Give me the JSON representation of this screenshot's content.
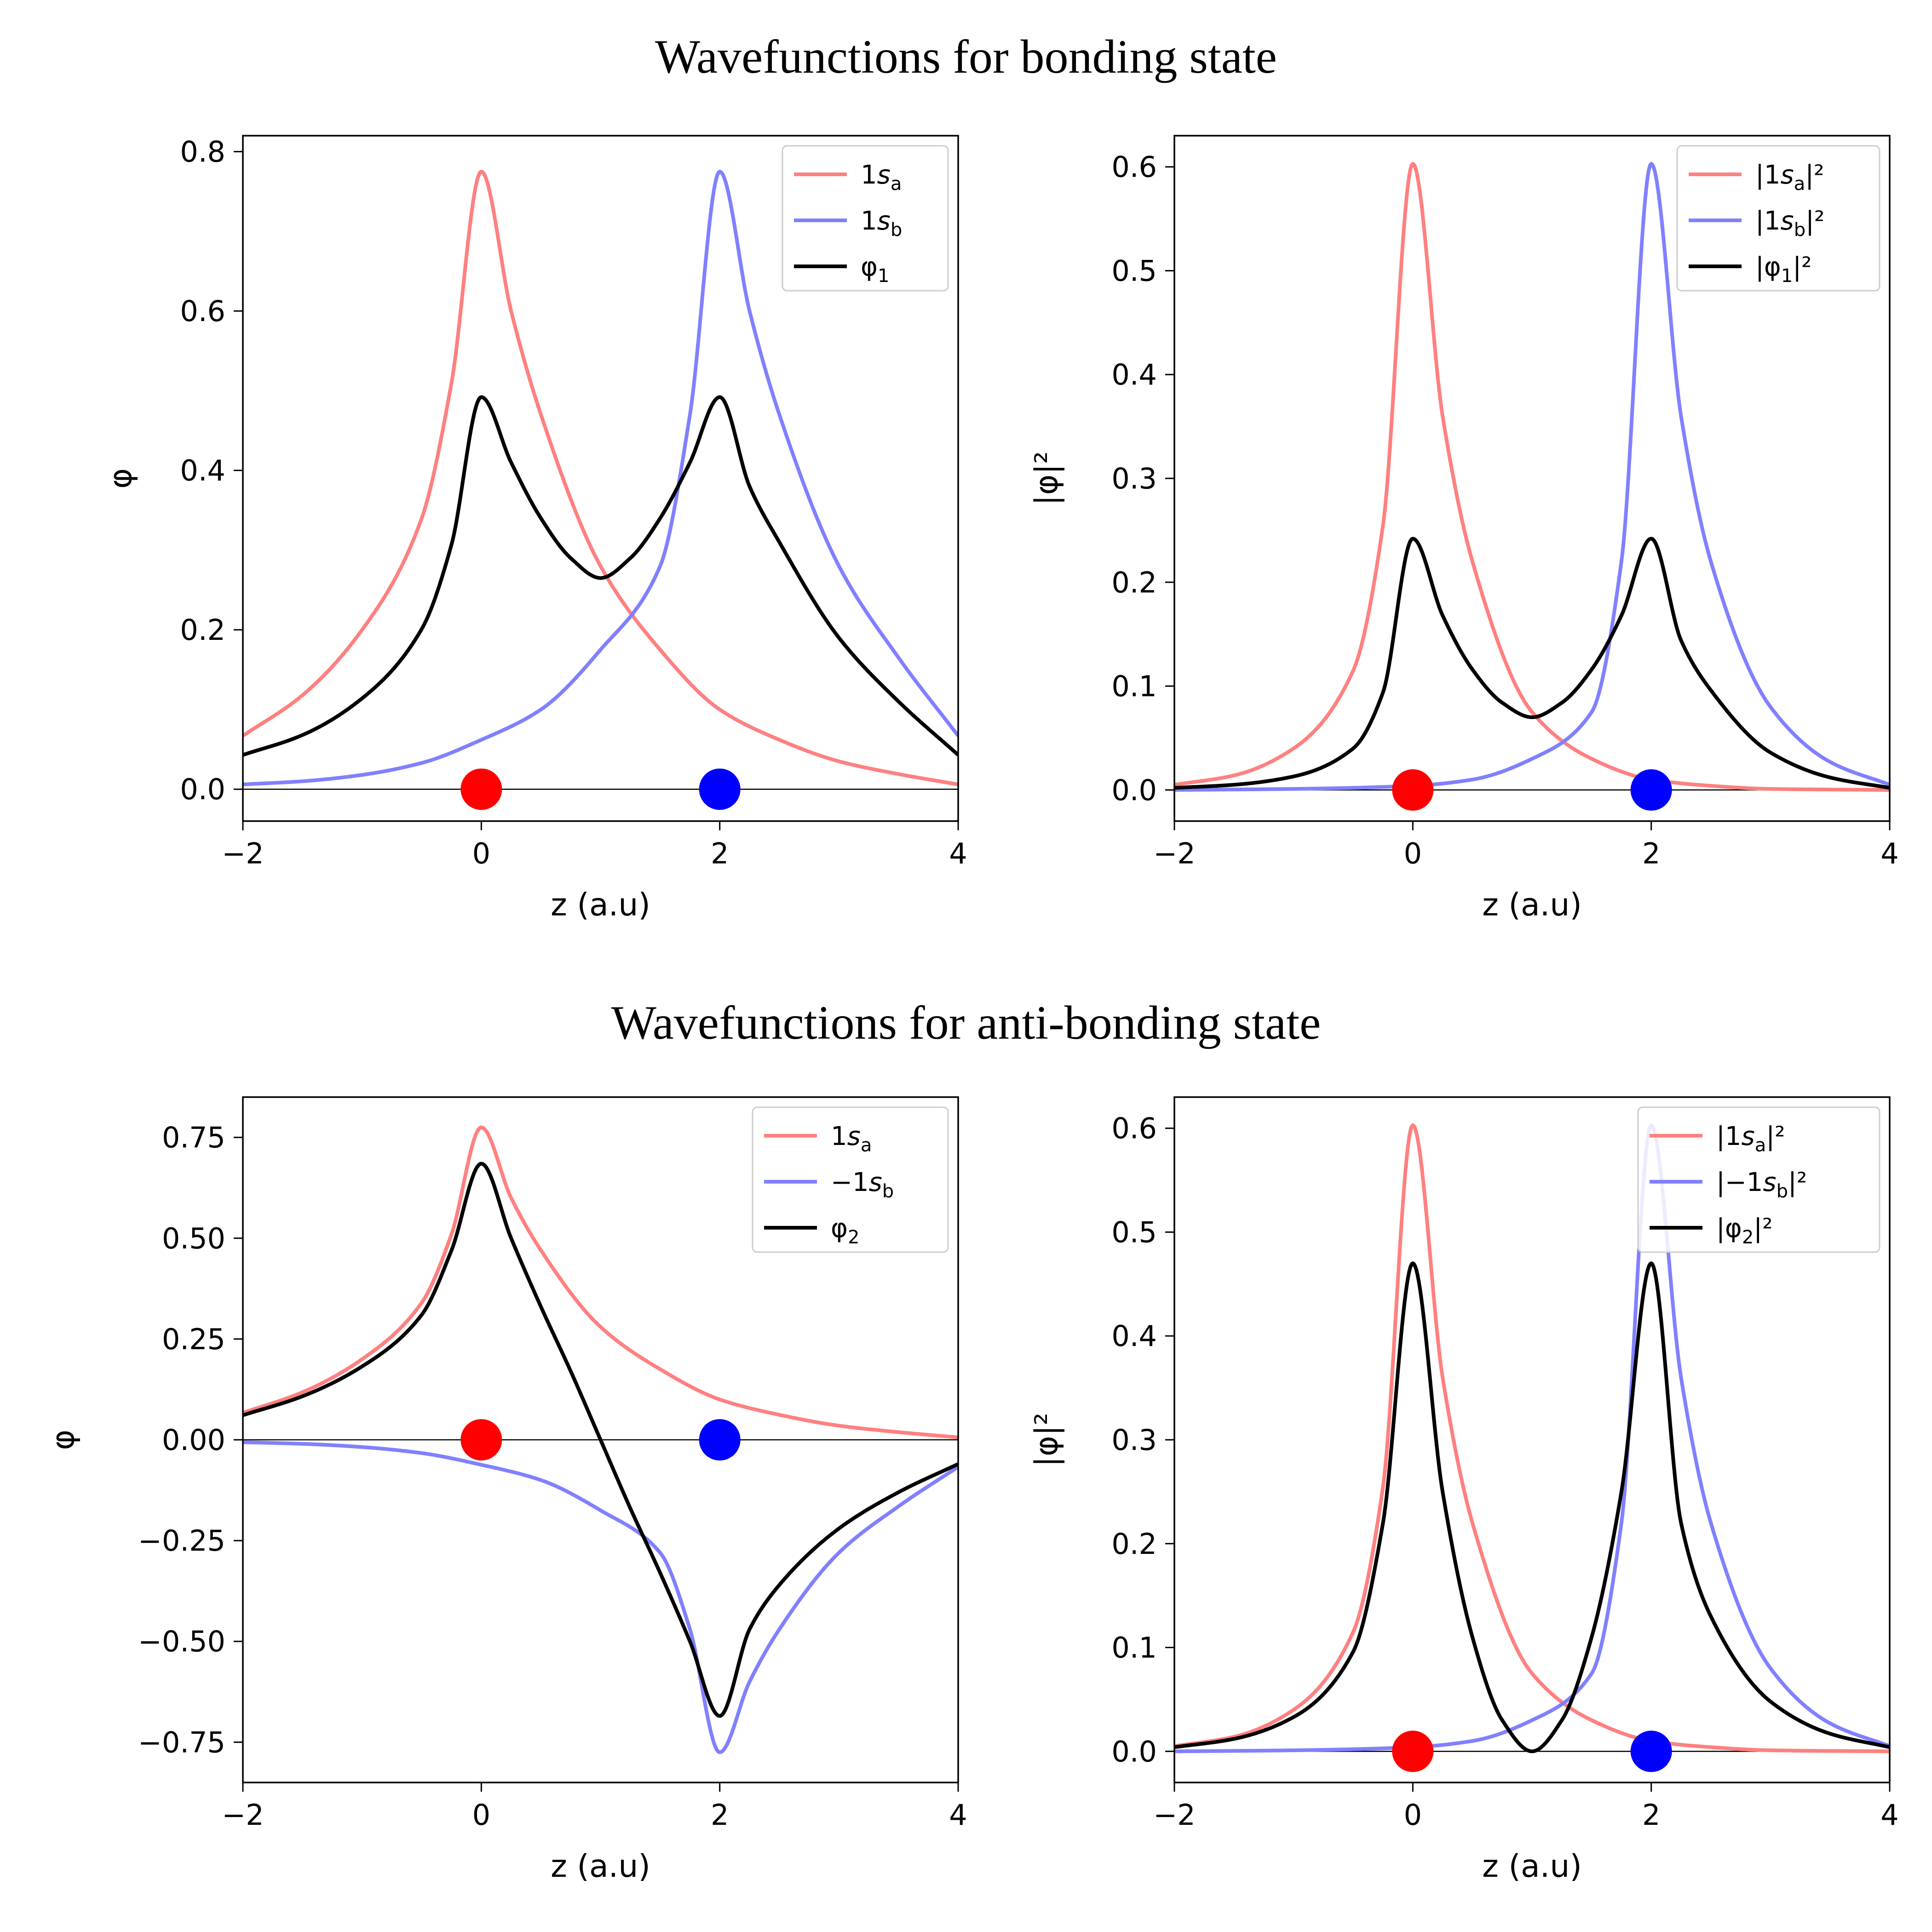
{
  "figure": {
    "top_title": "Wavefunctions for bonding state",
    "bottom_title": "Wavefunctions for anti-bonding state"
  },
  "colors": {
    "atom_a": "#ff8080",
    "atom_b": "#8080ff",
    "combined": "#000000",
    "nucleus_a": "#ff0000",
    "nucleus_b": "#0000ff"
  },
  "chart_data": [
    {
      "id": "bonding-psi",
      "type": "line",
      "xlabel": "z (a.u)",
      "ylabel": "φ",
      "xlim": [
        -2,
        4
      ],
      "ylim": [
        -0.04,
        0.82
      ],
      "xticks": [
        -2,
        0,
        2,
        4
      ],
      "xtick_labels": [
        "−2",
        "0",
        "2",
        "4"
      ],
      "yticks": [
        0.0,
        0.2,
        0.4,
        0.6,
        0.8
      ],
      "ytick_labels": [
        "0.0",
        "0.2",
        "0.4",
        "0.6",
        "0.8"
      ],
      "legend_position": "upper-right",
      "series": [
        {
          "name": "1s_a",
          "legend": [
            "1",
            "s",
            "a",
            ""
          ],
          "color": "#ff8080",
          "x": [
            -2,
            -1.5,
            -1,
            -0.5,
            -0.25,
            0,
            0.25,
            0.5,
            1,
            1.5,
            2,
            2.5,
            3,
            3.5,
            4
          ],
          "y": [
            0.067,
            0.118,
            0.2,
            0.34,
            0.51,
            0.775,
            0.6,
            0.47,
            0.28,
            0.175,
            0.1,
            0.062,
            0.035,
            0.019,
            0.006
          ]
        },
        {
          "name": "1s_b",
          "legend": [
            "1",
            "s",
            "b",
            ""
          ],
          "color": "#8080ff",
          "x": [
            -2,
            -1.5,
            -1,
            -0.5,
            0,
            0.5,
            1,
            1.5,
            1.75,
            2,
            2.25,
            2.5,
            3,
            3.5,
            4
          ],
          "y": [
            0.006,
            0.01,
            0.018,
            0.033,
            0.062,
            0.1,
            0.175,
            0.28,
            0.47,
            0.775,
            0.6,
            0.47,
            0.28,
            0.165,
            0.067
          ]
        },
        {
          "name": "φ1",
          "legend": [
            "φ",
            "",
            "1",
            ""
          ],
          "color": "#000000",
          "x": [
            -2,
            -1.5,
            -1,
            -0.5,
            -0.25,
            0,
            0.25,
            0.5,
            0.75,
            1,
            1.25,
            1.5,
            1.75,
            2,
            2.25,
            2.5,
            3,
            3.5,
            4
          ],
          "y": [
            0.043,
            0.068,
            0.114,
            0.201,
            0.307,
            0.492,
            0.41,
            0.34,
            0.29,
            0.265,
            0.29,
            0.34,
            0.41,
            0.492,
            0.38,
            0.31,
            0.19,
            0.11,
            0.043
          ]
        }
      ],
      "markers": [
        {
          "x": 0,
          "y": 0,
          "color": "#ff0000"
        },
        {
          "x": 2,
          "y": 0,
          "color": "#0000ff"
        }
      ]
    },
    {
      "id": "bonding-density",
      "type": "line",
      "xlabel": "z (a.u)",
      "ylabel": "|φ|²",
      "xlim": [
        -2,
        4
      ],
      "ylim": [
        -0.03,
        0.63
      ],
      "xticks": [
        -2,
        0,
        2,
        4
      ],
      "xtick_labels": [
        "−2",
        "0",
        "2",
        "4"
      ],
      "yticks": [
        0.0,
        0.1,
        0.2,
        0.3,
        0.4,
        0.5,
        0.6
      ],
      "ytick_labels": [
        "0.0",
        "0.1",
        "0.2",
        "0.3",
        "0.4",
        "0.5",
        "0.6"
      ],
      "legend_position": "upper-right",
      "series": [
        {
          "name": "|1s_a|^2",
          "legend": [
            "|1",
            "s",
            "a",
            "|²"
          ],
          "color": "#ff8080",
          "x": [
            -2,
            -1.5,
            -1,
            -0.5,
            -0.25,
            0,
            0.25,
            0.5,
            1,
            1.5,
            2,
            2.5,
            3,
            4
          ],
          "y": [
            0.005,
            0.014,
            0.04,
            0.115,
            0.255,
            0.603,
            0.36,
            0.22,
            0.075,
            0.03,
            0.01,
            0.004,
            0.001,
            0.0
          ]
        },
        {
          "name": "|1s_b|^2",
          "legend": [
            "|1",
            "s",
            "b",
            "|²"
          ],
          "color": "#8080ff",
          "x": [
            -2,
            -1,
            0,
            0.5,
            1,
            1.5,
            1.75,
            2,
            2.25,
            2.5,
            3,
            3.5,
            4
          ],
          "y": [
            0.0,
            0.001,
            0.004,
            0.01,
            0.03,
            0.075,
            0.22,
            0.603,
            0.36,
            0.22,
            0.08,
            0.027,
            0.005
          ]
        },
        {
          "name": "|φ1|^2",
          "legend": [
            "|φ",
            "",
            "1",
            "|²"
          ],
          "color": "#000000",
          "x": [
            -2,
            -1.5,
            -1,
            -0.5,
            -0.25,
            0,
            0.25,
            0.5,
            0.75,
            1,
            1.25,
            1.5,
            1.75,
            2,
            2.25,
            2.5,
            3,
            3.5,
            4
          ],
          "y": [
            0.002,
            0.005,
            0.013,
            0.04,
            0.094,
            0.242,
            0.168,
            0.116,
            0.084,
            0.07,
            0.084,
            0.116,
            0.168,
            0.242,
            0.144,
            0.096,
            0.036,
            0.012,
            0.002
          ]
        }
      ],
      "markers": [
        {
          "x": 0,
          "y": 0,
          "color": "#ff0000"
        },
        {
          "x": 2,
          "y": 0,
          "color": "#0000ff"
        }
      ]
    },
    {
      "id": "antibonding-psi",
      "type": "line",
      "xlabel": "z (a.u)",
      "ylabel": "φ",
      "xlim": [
        -2,
        4
      ],
      "ylim": [
        -0.85,
        0.85
      ],
      "xticks": [
        -2,
        0,
        2,
        4
      ],
      "xtick_labels": [
        "−2",
        "0",
        "2",
        "4"
      ],
      "yticks": [
        -0.75,
        -0.5,
        -0.25,
        0.0,
        0.25,
        0.5,
        0.75
      ],
      "ytick_labels": [
        "−0.75",
        "−0.50",
        "−0.25",
        "0.00",
        "0.25",
        "0.50",
        "0.75"
      ],
      "legend_position": "upper-right",
      "series": [
        {
          "name": "1s_a",
          "legend": [
            "1",
            "s",
            "a",
            ""
          ],
          "color": "#ff8080",
          "x": [
            -2,
            -1.5,
            -1,
            -0.5,
            -0.25,
            0,
            0.25,
            0.5,
            1,
            1.5,
            2,
            2.5,
            3,
            3.5,
            4
          ],
          "y": [
            0.067,
            0.118,
            0.2,
            0.34,
            0.51,
            0.775,
            0.6,
            0.47,
            0.28,
            0.175,
            0.1,
            0.062,
            0.035,
            0.019,
            0.006
          ]
        },
        {
          "name": "−1s_b",
          "legend": [
            "−1",
            "s",
            "b",
            ""
          ],
          "color": "#8080ff",
          "x": [
            -2,
            -1.5,
            -1,
            -0.5,
            0,
            0.5,
            1,
            1.5,
            1.75,
            2,
            2.25,
            2.5,
            3,
            3.5,
            4
          ],
          "y": [
            -0.006,
            -0.01,
            -0.018,
            -0.033,
            -0.062,
            -0.1,
            -0.175,
            -0.28,
            -0.47,
            -0.775,
            -0.6,
            -0.47,
            -0.28,
            -0.165,
            -0.067
          ]
        },
        {
          "name": "φ2",
          "legend": [
            "φ",
            "",
            "2",
            ""
          ],
          "color": "#000000",
          "x": [
            -2,
            -1.5,
            -1,
            -0.5,
            -0.25,
            0,
            0.25,
            0.5,
            0.75,
            1,
            1.25,
            1.5,
            1.75,
            2,
            2.25,
            2.5,
            3,
            3.5,
            4
          ],
          "y": [
            0.061,
            0.108,
            0.182,
            0.31,
            0.47,
            0.685,
            0.5,
            0.33,
            0.17,
            0.0,
            -0.17,
            -0.33,
            -0.5,
            -0.685,
            -0.47,
            -0.36,
            -0.22,
            -0.13,
            -0.06
          ]
        }
      ],
      "markers": [
        {
          "x": 0,
          "y": 0,
          "color": "#ff0000"
        },
        {
          "x": 2,
          "y": 0,
          "color": "#0000ff"
        }
      ]
    },
    {
      "id": "antibonding-density",
      "type": "line",
      "xlabel": "z (a.u)",
      "ylabel": "|φ|²",
      "xlim": [
        -2,
        4
      ],
      "ylim": [
        -0.03,
        0.63
      ],
      "xticks": [
        -2,
        0,
        2,
        4
      ],
      "xtick_labels": [
        "−2",
        "0",
        "2",
        "4"
      ],
      "yticks": [
        0.0,
        0.1,
        0.2,
        0.3,
        0.4,
        0.5,
        0.6
      ],
      "ytick_labels": [
        "0.0",
        "0.1",
        "0.2",
        "0.3",
        "0.4",
        "0.5",
        "0.6"
      ],
      "legend_position": "upper-right",
      "series": [
        {
          "name": "|1s_a|^2",
          "legend": [
            "|1",
            "s",
            "a",
            "|²"
          ],
          "color": "#ff8080",
          "x": [
            -2,
            -1.5,
            -1,
            -0.5,
            -0.25,
            0,
            0.25,
            0.5,
            1,
            1.5,
            2,
            2.5,
            3,
            4
          ],
          "y": [
            0.005,
            0.014,
            0.04,
            0.115,
            0.255,
            0.603,
            0.36,
            0.22,
            0.075,
            0.03,
            0.01,
            0.004,
            0.001,
            0.0
          ]
        },
        {
          "name": "|−1s_b|^2",
          "legend": [
            "|−1",
            "s",
            "b",
            "|²"
          ],
          "color": "#8080ff",
          "x": [
            -2,
            -1,
            0,
            0.5,
            1,
            1.5,
            1.75,
            2,
            2.25,
            2.5,
            3,
            3.5,
            4
          ],
          "y": [
            0.0,
            0.001,
            0.004,
            0.01,
            0.03,
            0.075,
            0.22,
            0.603,
            0.36,
            0.22,
            0.08,
            0.027,
            0.005
          ]
        },
        {
          "name": "|φ2|^2",
          "legend": [
            "|φ",
            "",
            "2",
            "|²"
          ],
          "color": "#000000",
          "x": [
            -2,
            -1.5,
            -1,
            -0.5,
            -0.25,
            0,
            0.25,
            0.5,
            0.75,
            1,
            1.25,
            1.5,
            1.75,
            2,
            2.25,
            2.5,
            3,
            3.5,
            4
          ],
          "y": [
            0.004,
            0.012,
            0.033,
            0.096,
            0.22,
            0.47,
            0.25,
            0.11,
            0.03,
            0.0,
            0.03,
            0.11,
            0.25,
            0.47,
            0.22,
            0.13,
            0.048,
            0.017,
            0.004
          ]
        }
      ],
      "markers": [
        {
          "x": 0,
          "y": 0,
          "color": "#ff0000"
        },
        {
          "x": 2,
          "y": 0,
          "color": "#0000ff"
        }
      ]
    }
  ]
}
